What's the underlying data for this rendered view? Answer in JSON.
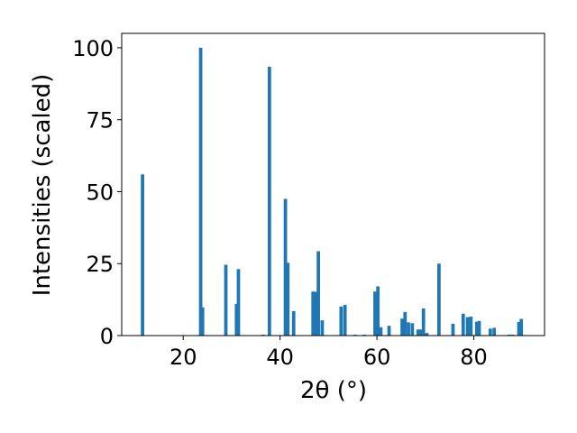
{
  "chart_data": {
    "type": "bar",
    "xlabel": "2θ (°)",
    "ylabel": "Intensities (scaled)",
    "xlim": [
      7.3,
      94.6
    ],
    "ylim": [
      0,
      105
    ],
    "grid": false,
    "bar_color": "#1f77b4",
    "bar_width": 0.7,
    "xticks": [
      20,
      40,
      60,
      80
    ],
    "yticks": [
      0,
      25,
      50,
      75,
      100
    ],
    "series": [
      {
        "x": [
          11.6,
          23.6,
          24.0,
          28.8,
          31.0,
          31.4,
          36.5,
          37.8,
          41.1,
          41.6,
          42.8,
          46.8,
          47.4,
          47.9,
          48.7,
          52.6,
          53.4,
          55.5,
          57.4,
          59.6,
          60.2,
          60.8,
          62.5,
          65.2,
          65.8,
          66.5,
          67.3,
          68.5,
          69.0,
          69.6,
          70.3,
          72.8,
          75.7,
          77.8,
          78.7,
          79.4,
          80.6,
          81.1,
          83.4,
          84.2,
          87.3,
          88.0,
          89.3,
          89.8
        ],
        "values": [
          56.0,
          100.0,
          9.8,
          24.6,
          11.0,
          23.1,
          0.3,
          93.4,
          47.5,
          25.3,
          8.5,
          15.3,
          15.2,
          29.3,
          5.3,
          10.1,
          10.7,
          0.3,
          0.3,
          15.3,
          17.1,
          2.9,
          3.4,
          5.9,
          8.2,
          4.6,
          4.3,
          2.1,
          2.1,
          9.4,
          0.9,
          25.0,
          4.1,
          7.6,
          6.4,
          6.6,
          4.8,
          5.1,
          2.4,
          2.7,
          0.3,
          0.3,
          4.7,
          5.8
        ]
      }
    ]
  }
}
